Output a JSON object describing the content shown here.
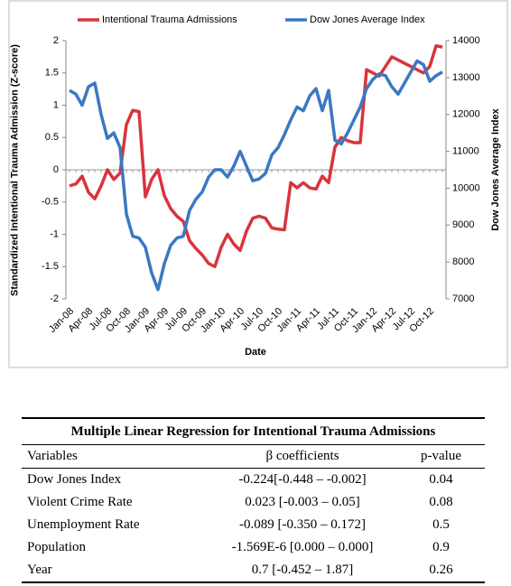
{
  "chart_data": {
    "type": "line",
    "categories": [
      "Jan-08",
      null,
      null,
      "Apr-08",
      null,
      null,
      "Jul-08",
      null,
      null,
      "Oct-08",
      null,
      null,
      "Jan-09",
      null,
      null,
      "Apr-09",
      null,
      null,
      "Jul-09",
      null,
      null,
      "Oct-09",
      null,
      null,
      "Jan-10",
      null,
      null,
      "Apr-10",
      null,
      null,
      "Jul-10",
      null,
      null,
      "Oct-10",
      null,
      null,
      "Jan-11",
      null,
      null,
      "Apr-11",
      null,
      null,
      "Jul-11",
      null,
      null,
      "Oct-11",
      null,
      null,
      "Jan-12",
      null,
      null,
      "Apr-12",
      null,
      null,
      "Jul-12",
      null,
      null,
      "Oct-12",
      null,
      null
    ],
    "series": [
      {
        "name": "Intentional Trauma Admissions",
        "color": "#d9343b",
        "axis": "y",
        "values": [
          -0.25,
          -0.22,
          -0.1,
          -0.35,
          -0.45,
          -0.25,
          0.0,
          -0.15,
          -0.05,
          0.7,
          0.92,
          0.9,
          -0.42,
          -0.15,
          0.0,
          -0.4,
          -0.6,
          -0.72,
          -0.8,
          -1.1,
          -1.22,
          -1.32,
          -1.45,
          -1.5,
          -1.2,
          -1.0,
          -1.15,
          -1.25,
          -0.95,
          -0.75,
          -0.72,
          -0.75,
          -0.9,
          -0.92,
          -0.93,
          -0.2,
          -0.28,
          -0.2,
          -0.28,
          -0.3,
          -0.1,
          -0.2,
          0.35,
          0.5,
          0.45,
          0.42,
          0.42,
          1.55,
          1.5,
          1.45,
          1.6,
          1.75,
          1.7,
          1.65,
          1.6,
          1.55,
          1.5,
          1.6,
          1.92,
          1.9
        ]
      },
      {
        "name": "Dow Jones Average Index",
        "color": "#3a78c3",
        "axis": "y2",
        "values": [
          12650,
          12550,
          12250,
          12750,
          12850,
          12000,
          11350,
          11500,
          11100,
          9300,
          8700,
          8650,
          8400,
          7700,
          7250,
          7950,
          8450,
          8650,
          8700,
          9400,
          9700,
          9900,
          10300,
          10500,
          10500,
          10300,
          10600,
          11000,
          10600,
          10200,
          10250,
          10400,
          10900,
          11100,
          11450,
          11850,
          12200,
          12100,
          12500,
          12700,
          12100,
          12650,
          11300,
          11200,
          11500,
          11850,
          12200,
          12700,
          12950,
          13100,
          13050,
          12750,
          12550,
          12850,
          13150,
          13450,
          13350,
          12900,
          13050,
          13150
        ]
      }
    ],
    "xlabel": "Date",
    "ylabel": "Standardized Intentional Trauma Admission (Z-score)",
    "y2label": "Dow Jones Average Index",
    "ylim": [
      -2,
      2
    ],
    "yticks": [
      -2,
      -1.5,
      -1,
      -0.5,
      0,
      0.5,
      1,
      1.5,
      2
    ],
    "y2lim": [
      7000,
      14000
    ],
    "y2ticks": [
      7000,
      8000,
      9000,
      10000,
      11000,
      12000,
      13000,
      14000
    ],
    "grid": false,
    "legend": "top"
  },
  "table": {
    "title": "Multiple Linear Regression for Intentional Trauma Admissions",
    "header": [
      "Variables",
      "β coefficients",
      "p-value"
    ],
    "rows": [
      [
        "Dow Jones Index",
        "-0.224[-0.448 – -0.002]",
        "0.04"
      ],
      [
        "Violent Crime Rate",
        "0.023 [-0.003 – 0.05]",
        "0.08"
      ],
      [
        "Unemployment Rate",
        "-0.089 [-0.350 – 0.172]",
        "0.5"
      ],
      [
        "Population",
        "-1.569E-6 [0.000 – 0.000]",
        "0.9"
      ],
      [
        "Year",
        "0.7 [-0.452 – 1.87]",
        "0.26"
      ]
    ]
  }
}
